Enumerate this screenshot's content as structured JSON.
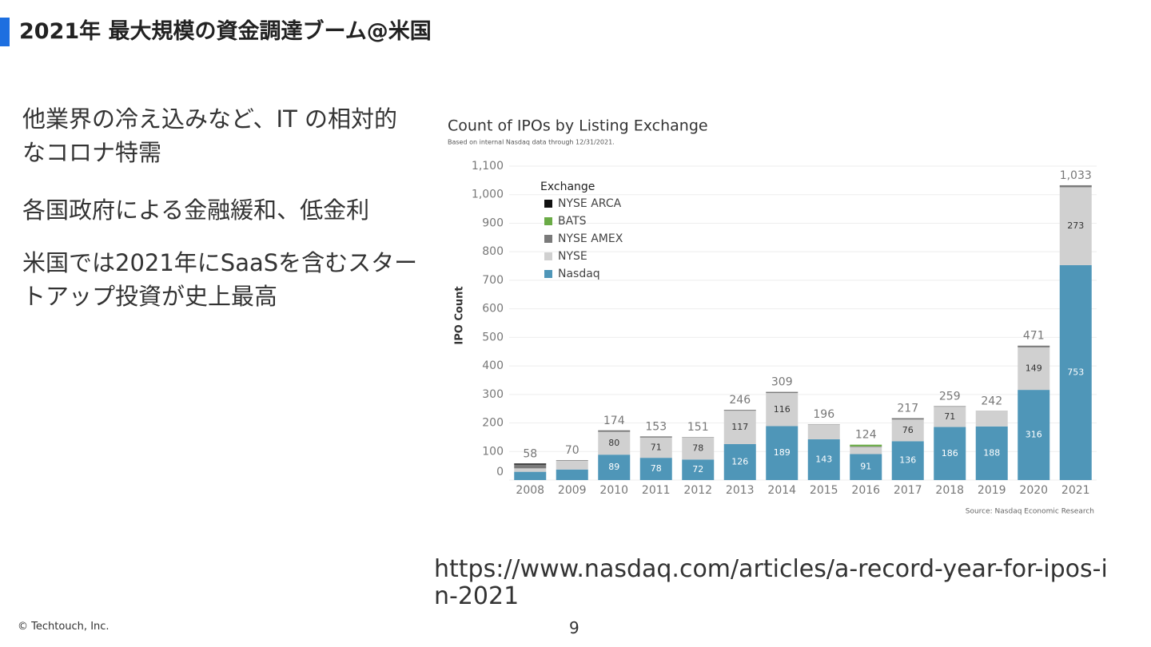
{
  "slide": {
    "title": "2021年 最大規模の資金調達ブーム@米国",
    "bullets": [
      "他業界の冷え込みなど、IT の相対的なコロナ特需",
      "各国政府による金融緩和、低金利",
      "米国では2021年にSaaSを含むスタートアップ投資が史上最高"
    ],
    "url": "https://www.nasdaq.com/articles/a-record-year-for-ipos-in-2021",
    "footer": "© Techtouch, Inc.",
    "page_number": "9"
  },
  "chart_data": {
    "type": "stacked_bar",
    "title": "Count of IPOs by Listing Exchange",
    "subtitle": "Based on internal Nasdaq data through 12/31/2021.",
    "y_label": "IPO Count",
    "source": "Source: Nasdaq Economic Research",
    "legend_title": "Exchange",
    "categories": [
      "2008",
      "2009",
      "2010",
      "2011",
      "2012",
      "2013",
      "2014",
      "2015",
      "2016",
      "2017",
      "2018",
      "2019",
      "2020",
      "2021"
    ],
    "series": [
      {
        "name": "NYSE ARCA",
        "color": "#111111",
        "values": [
          4,
          0,
          1,
          0,
          0,
          0,
          0,
          0,
          0,
          0,
          0,
          0,
          0,
          0
        ]
      },
      {
        "name": "BATS",
        "color": "#6aab46",
        "values": [
          0,
          0,
          0,
          0,
          0,
          0,
          0,
          0,
          6,
          0,
          0,
          0,
          0,
          0
        ]
      },
      {
        "name": "NYSE AMEX",
        "color": "#7a7a7a",
        "values": [
          13,
          2,
          4,
          4,
          1,
          3,
          4,
          1,
          2,
          5,
          2,
          1,
          6,
          7
        ]
      },
      {
        "name": "NYSE",
        "color": "#d0d0d0",
        "values": [
          12,
          31,
          80,
          71,
          78,
          117,
          116,
          52,
          25,
          76,
          71,
          53,
          149,
          273
        ],
        "value_labels": [
          null,
          null,
          "80",
          "71",
          "78",
          "117",
          "116",
          null,
          null,
          "76",
          "71",
          null,
          "149",
          "273"
        ]
      },
      {
        "name": "Nasdaq",
        "color": "#4f96b8",
        "values": [
          29,
          37,
          89,
          78,
          72,
          126,
          189,
          143,
          91,
          136,
          186,
          188,
          316,
          753
        ],
        "value_labels": [
          null,
          null,
          "89",
          "78",
          "72",
          "126",
          "189",
          "143",
          "91",
          "136",
          "186",
          "188",
          "316",
          "753"
        ]
      }
    ],
    "totals": [
      58,
      70,
      174,
      153,
      151,
      246,
      309,
      196,
      124,
      217,
      259,
      242,
      471,
      {
        "value": 1033,
        "label": "1,033"
      }
    ],
    "ylim": [
      0,
      1100
    ],
    "yticks": [
      0,
      100,
      200,
      300,
      400,
      500,
      600,
      700,
      800,
      900,
      {
        "value": 1000,
        "label": "1,000"
      },
      {
        "value": 1100,
        "label": "1,100"
      }
    ],
    "grid": true,
    "legend": "upper-left"
  }
}
